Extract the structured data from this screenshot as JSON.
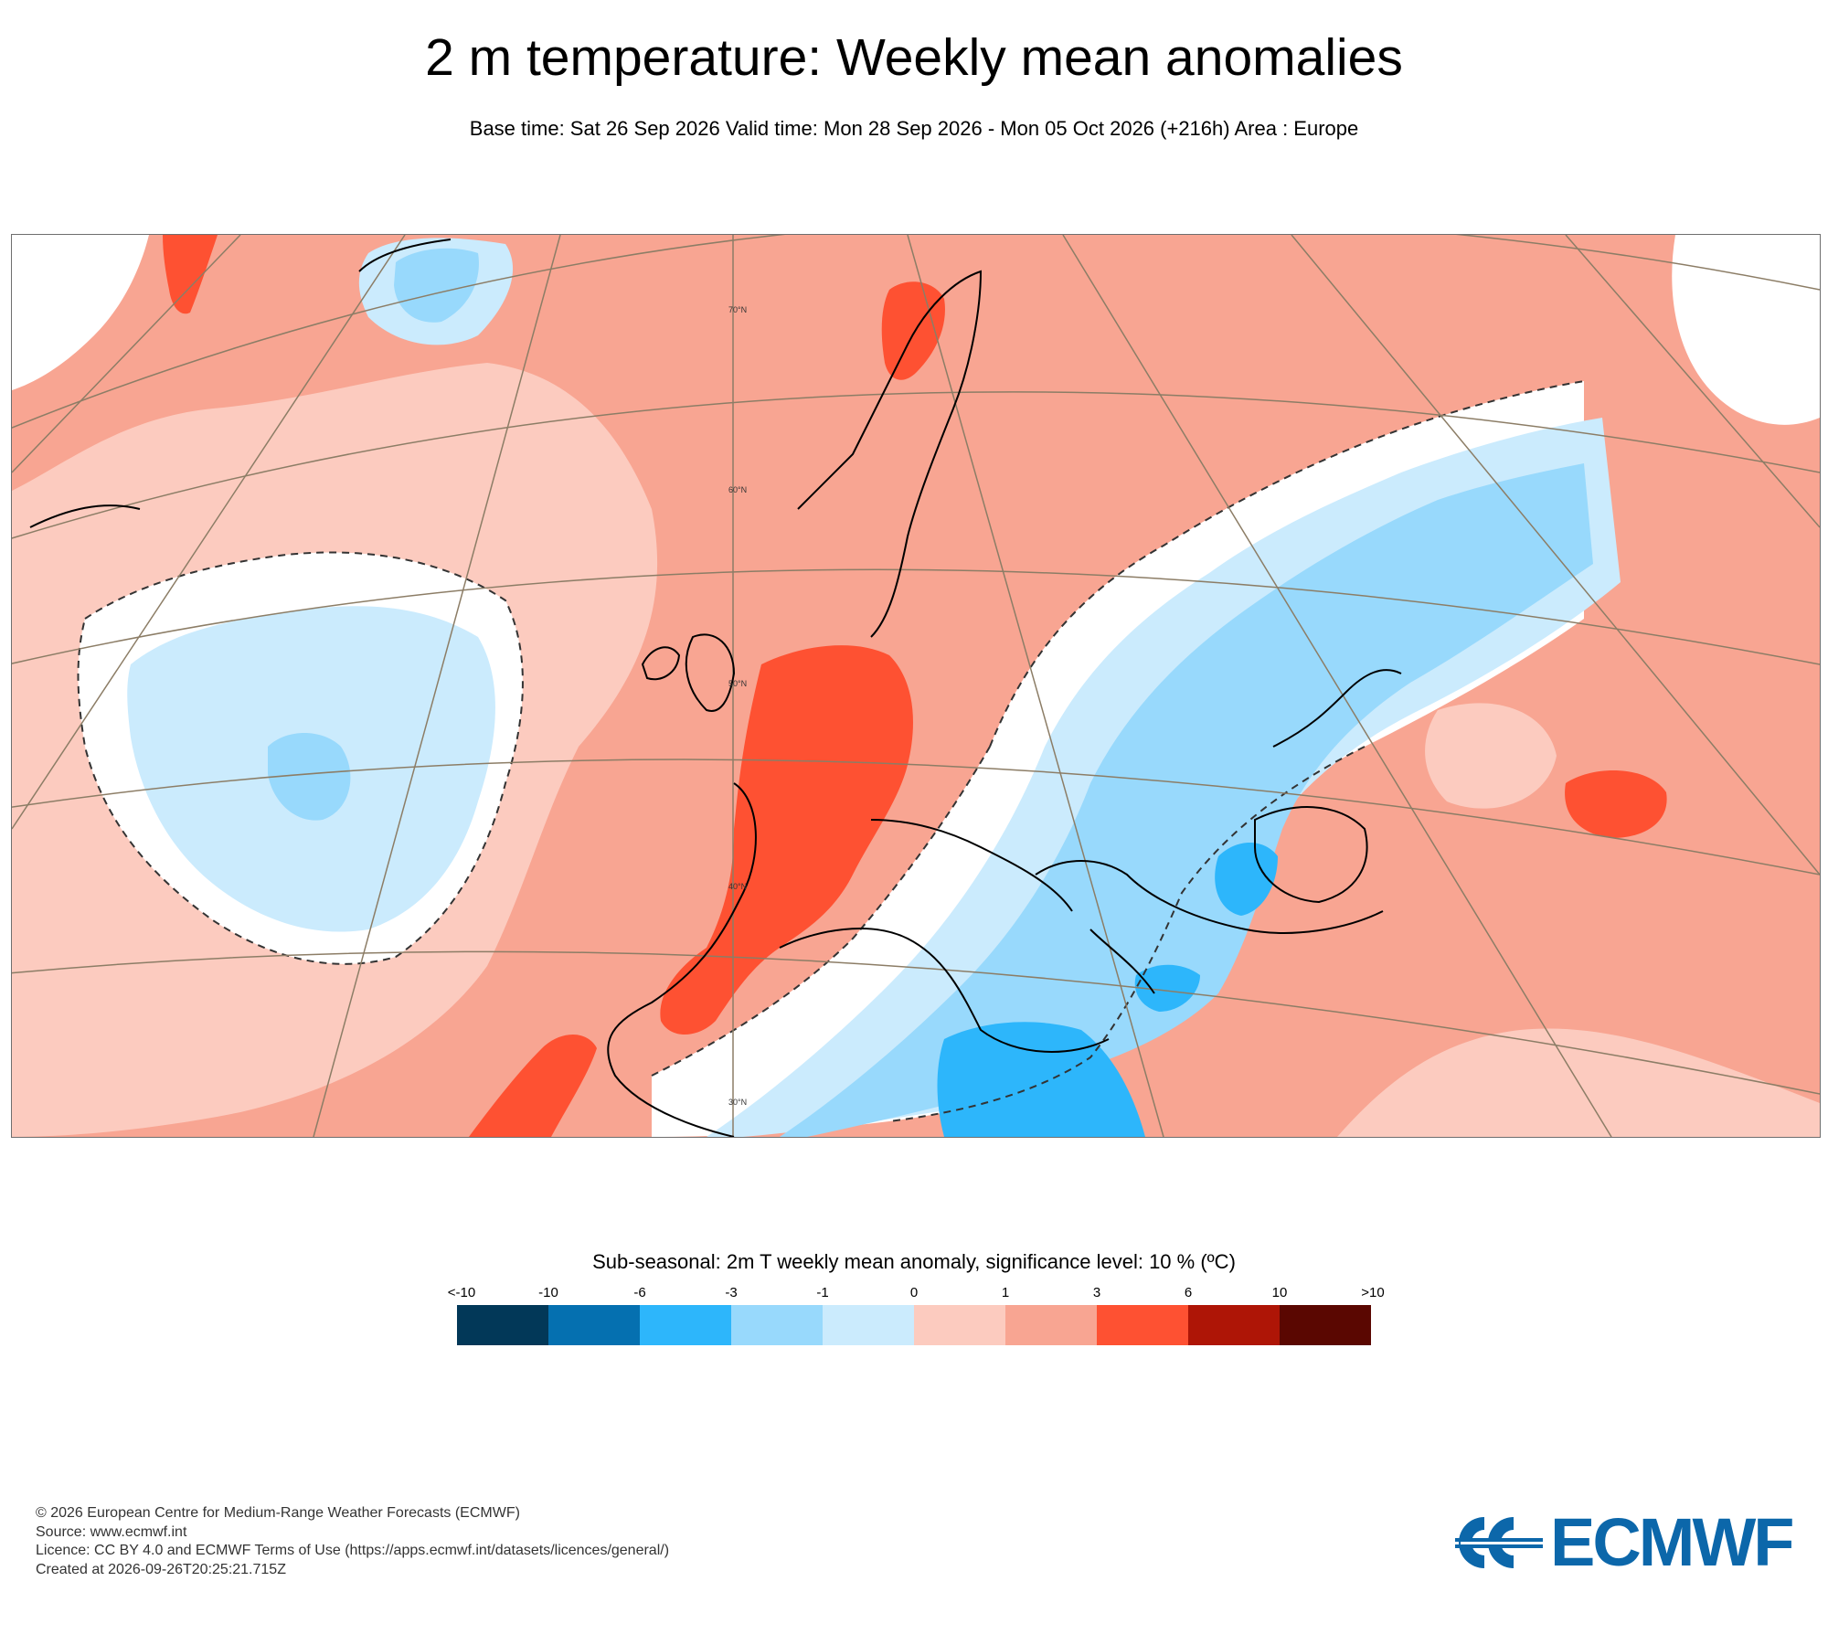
{
  "header": {
    "title": "2 m temperature: Weekly mean anomalies",
    "subtitle": "Base time: Sat 26 Sep 2026 Valid time: Mon 28 Sep 2026 - Mon 05 Oct 2026 (+216h) Area : Europe"
  },
  "map": {
    "lat_labels": [
      "70°N",
      "60°N",
      "50°N",
      "40°N",
      "30°N"
    ],
    "colors": {
      "frame": "#6e6e6e",
      "graticule": "#8c7d66",
      "coastline": "#000000"
    }
  },
  "legend": {
    "title": "Sub-seasonal: 2m T weekly mean anomaly, significance level: 10 % (ºC)",
    "ticks": [
      "<-10",
      "-10",
      "-6",
      "-3",
      "-1",
      "0",
      "1",
      "3",
      "6",
      "10",
      ">10"
    ],
    "colors": [
      "#023858",
      "#0570b0",
      "#2db6fb",
      "#98d9fc",
      "#cbebfd",
      "#fccbbf",
      "#f8a592",
      "#fe5132",
      "#ae1506",
      "#5a0701"
    ]
  },
  "footer": {
    "lines": [
      "© 2026 European Centre for Medium-Range Weather Forecasts (ECMWF)",
      "Source: www.ecmwf.int",
      "Licence: CC BY 4.0 and ECMWF Terms of Use (https://apps.ecmwf.int/datasets/licences/general/)",
      "Created at 2026-09-26T20:25:21.715Z"
    ]
  },
  "logo": {
    "text": "ECMWF",
    "color": "#0c67aa"
  }
}
